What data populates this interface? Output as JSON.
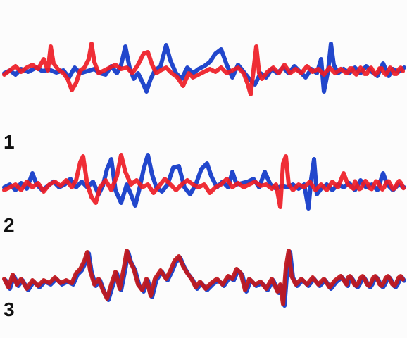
{
  "panels": [
    {
      "label": "1",
      "red_color": "#ee1c25",
      "blue_color": "#2247cc"
    },
    {
      "label": "2",
      "red_color": "#ee1c25",
      "blue_color": "#2247cc"
    },
    {
      "label": "3",
      "red_color": "#c0181e",
      "blue_color": "#2247cc"
    }
  ]
}
